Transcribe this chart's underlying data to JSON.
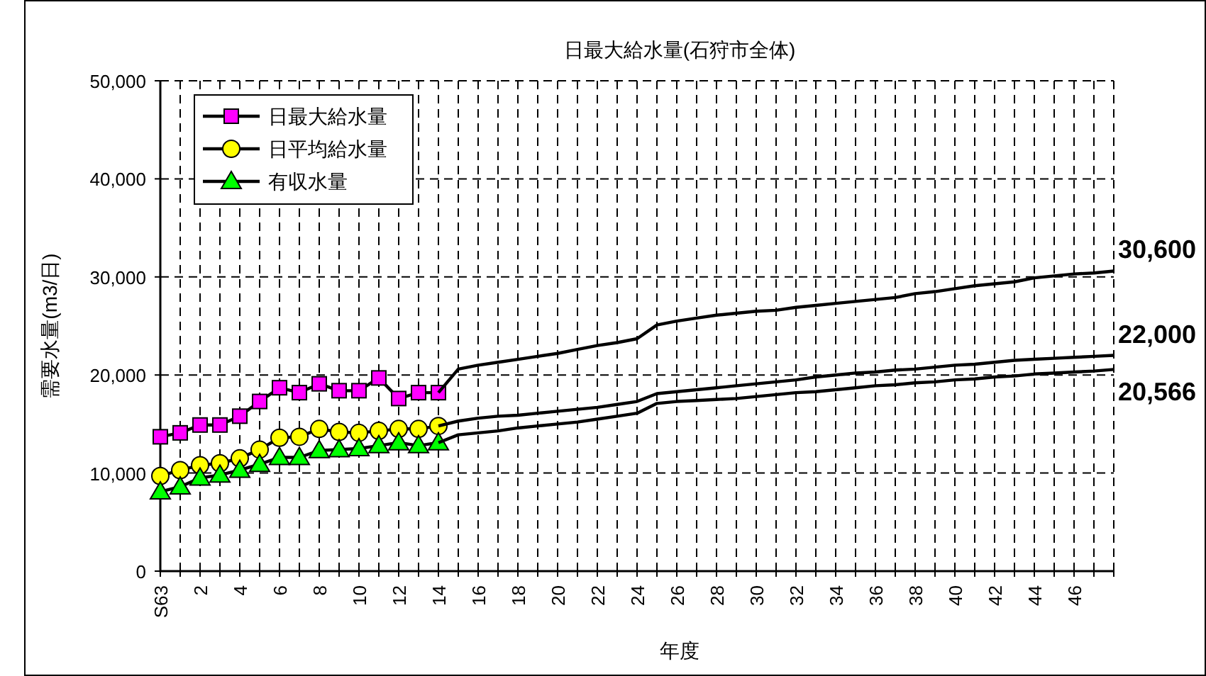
{
  "chart_data": {
    "type": "line",
    "title": "日最大給水量(石狩市全体)",
    "xlabel": "年度",
    "ylabel": "需要水量(m3/日)",
    "categories": [
      "S63",
      null,
      "2",
      null,
      "4",
      null,
      "6",
      null,
      "8",
      null,
      "10",
      null,
      "12",
      null,
      "14",
      null,
      "16",
      null,
      "18",
      null,
      "20",
      null,
      "22",
      null,
      "24",
      null,
      "26",
      null,
      "28",
      null,
      "30",
      null,
      "32",
      null,
      "34",
      null,
      "36",
      null,
      "38",
      null,
      "40",
      null,
      "42",
      null,
      "44",
      null,
      "46",
      null,
      null
    ],
    "ylim": [
      0,
      50000
    ],
    "yticks": [
      {
        "value": 0,
        "label": "0"
      },
      {
        "value": 10000,
        "label": "10,000"
      },
      {
        "value": 20000,
        "label": "20,000"
      },
      {
        "value": 30000,
        "label": "30,000"
      },
      {
        "value": 40000,
        "label": "40,000"
      },
      {
        "value": 50000,
        "label": "50,000"
      }
    ],
    "grid": true,
    "legend": "top left",
    "series": [
      {
        "name": "日最大給水量",
        "color": "#ff00ff",
        "marker": "square",
        "values": [
          13700,
          14100,
          14900,
          14900,
          15800,
          17300,
          18700,
          18200,
          19100,
          18400,
          18400,
          19700,
          17600,
          18200,
          18200,
          null,
          null,
          null,
          null,
          null,
          null,
          null,
          null,
          null,
          null,
          null,
          null,
          null,
          null,
          null,
          null,
          null,
          null,
          null,
          null,
          null,
          null,
          null,
          null,
          null,
          null,
          null,
          null,
          null,
          null,
          null,
          null,
          null,
          null
        ]
      },
      {
        "name": "日平均給水量",
        "color": "#ffff00",
        "marker": "circle",
        "values": [
          9700,
          10300,
          10800,
          11000,
          11500,
          12400,
          13600,
          13700,
          14500,
          14200,
          14100,
          14300,
          14500,
          14500,
          14800,
          null,
          null,
          null,
          null,
          null,
          null,
          null,
          null,
          null,
          null,
          null,
          null,
          null,
          null,
          null,
          null,
          null,
          null,
          null,
          null,
          null,
          null,
          null,
          null,
          null,
          null,
          null,
          null,
          null,
          null,
          null,
          null,
          null,
          null
        ]
      },
      {
        "name": "有収水量",
        "color": "#00ff00",
        "marker": "triangle",
        "values": [
          8100,
          8600,
          9500,
          9800,
          10300,
          10900,
          11600,
          11600,
          12300,
          12400,
          12500,
          12800,
          13100,
          12800,
          13100,
          null,
          null,
          null,
          null,
          null,
          null,
          null,
          null,
          null,
          null,
          null,
          null,
          null,
          null,
          null,
          null,
          null,
          null,
          null,
          null,
          null,
          null,
          null,
          null,
          null,
          null,
          null,
          null,
          null,
          null,
          null,
          null,
          null,
          null
        ]
      },
      {
        "color": "#000000",
        "marker": "none",
        "values": [
          null,
          null,
          null,
          null,
          null,
          null,
          null,
          null,
          null,
          null,
          null,
          null,
          null,
          null,
          18200,
          20600,
          21000,
          21300,
          21600,
          21900,
          22200,
          22600,
          23000,
          23300,
          23700,
          25100,
          25500,
          25800,
          26100,
          26300,
          26500,
          26600,
          26900,
          27100,
          27300,
          27500,
          27700,
          27900,
          28300,
          28500,
          28800,
          29100,
          29300,
          29500,
          29900,
          30100,
          30300,
          30400,
          30600
        ],
        "value_labels": [
          null,
          null,
          null,
          null,
          null,
          null,
          null,
          null,
          null,
          null,
          null,
          null,
          null,
          null,
          null,
          null,
          null,
          null,
          null,
          null,
          null,
          null,
          null,
          null,
          null,
          null,
          null,
          null,
          null,
          null,
          null,
          null,
          null,
          null,
          null,
          null,
          null,
          null,
          null,
          null,
          null,
          null,
          null,
          null,
          null,
          null,
          null,
          null,
          "30,600"
        ]
      },
      {
        "color": "#000000",
        "marker": "none",
        "values": [
          null,
          null,
          null,
          null,
          null,
          null,
          null,
          null,
          null,
          null,
          null,
          null,
          null,
          null,
          14800,
          15300,
          15600,
          15800,
          15900,
          16100,
          16300,
          16500,
          16700,
          17000,
          17300,
          18100,
          18300,
          18500,
          18700,
          18900,
          19100,
          19300,
          19500,
          19800,
          20000,
          20200,
          20300,
          20500,
          20600,
          20800,
          21000,
          21100,
          21300,
          21500,
          21600,
          21700,
          21800,
          21900,
          22000
        ],
        "value_labels": [
          null,
          null,
          null,
          null,
          null,
          null,
          null,
          null,
          null,
          null,
          null,
          null,
          null,
          null,
          null,
          null,
          null,
          null,
          null,
          null,
          null,
          null,
          null,
          null,
          null,
          null,
          null,
          null,
          null,
          null,
          null,
          null,
          null,
          null,
          null,
          null,
          null,
          null,
          null,
          null,
          null,
          null,
          null,
          null,
          null,
          null,
          null,
          null,
          "22,000"
        ]
      },
      {
        "color": "#000000",
        "marker": "none",
        "values": [
          null,
          null,
          null,
          null,
          null,
          null,
          null,
          null,
          null,
          null,
          null,
          null,
          null,
          null,
          13100,
          13900,
          14100,
          14300,
          14600,
          14800,
          15000,
          15200,
          15500,
          15800,
          16100,
          17100,
          17300,
          17400,
          17500,
          17600,
          17800,
          18000,
          18200,
          18300,
          18500,
          18700,
          18900,
          19000,
          19200,
          19300,
          19500,
          19600,
          19800,
          19900,
          20100,
          20200,
          20300,
          20400,
          20566
        ],
        "value_labels": [
          null,
          null,
          null,
          null,
          null,
          null,
          null,
          null,
          null,
          null,
          null,
          null,
          null,
          null,
          null,
          null,
          null,
          null,
          null,
          null,
          null,
          null,
          null,
          null,
          null,
          null,
          null,
          null,
          null,
          null,
          null,
          null,
          null,
          null,
          null,
          null,
          null,
          null,
          null,
          null,
          null,
          null,
          null,
          null,
          null,
          null,
          null,
          null,
          "20,566"
        ]
      }
    ]
  }
}
